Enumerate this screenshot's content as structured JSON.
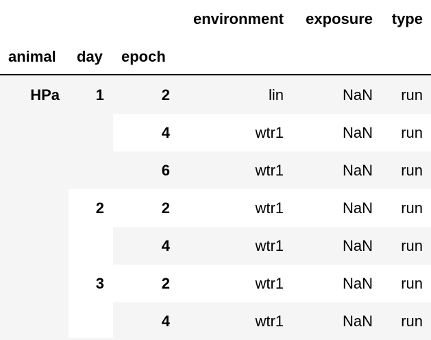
{
  "colors": {
    "stripe": "#f5f5f5",
    "text": "#000000",
    "rule": "#000000"
  },
  "table": {
    "column_headers": [
      "environment",
      "exposure",
      "type"
    ],
    "index_names": [
      "animal",
      "day",
      "epoch"
    ],
    "rows": [
      {
        "animal": "HPa",
        "day": "1",
        "epoch": "2",
        "environment": "lin",
        "exposure": "NaN",
        "type": "run"
      },
      {
        "animal": "",
        "day": "",
        "epoch": "4",
        "environment": "wtr1",
        "exposure": "NaN",
        "type": "run"
      },
      {
        "animal": "",
        "day": "",
        "epoch": "6",
        "environment": "wtr1",
        "exposure": "NaN",
        "type": "run"
      },
      {
        "animal": "",
        "day": "2",
        "epoch": "2",
        "environment": "wtr1",
        "exposure": "NaN",
        "type": "run"
      },
      {
        "animal": "",
        "day": "",
        "epoch": "4",
        "environment": "wtr1",
        "exposure": "NaN",
        "type": "run"
      },
      {
        "animal": "",
        "day": "3",
        "epoch": "2",
        "environment": "wtr1",
        "exposure": "NaN",
        "type": "run"
      },
      {
        "animal": "",
        "day": "",
        "epoch": "4",
        "environment": "wtr1",
        "exposure": "NaN",
        "type": "run"
      }
    ]
  }
}
